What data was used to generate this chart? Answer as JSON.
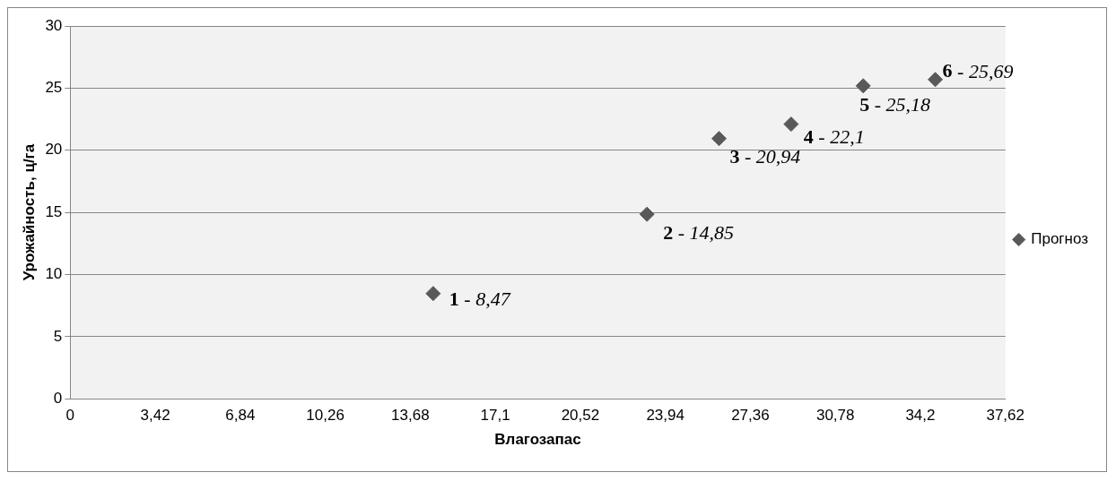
{
  "chart_data": {
    "type": "scatter",
    "xlabel": "Влагозапас",
    "ylabel": "Урожайность, ц/га",
    "x": [
      14.6,
      23.2,
      26.1,
      29.0,
      31.9,
      34.8
    ],
    "series": [
      {
        "name": "Прогноз",
        "color": "#595959",
        "values": [
          8.47,
          14.85,
          20.94,
          22.1,
          25.18,
          25.69
        ]
      }
    ],
    "xlim": [
      0,
      37.62
    ],
    "xticks": [
      0,
      {
        "value": 3.42,
        "label": "3,42"
      },
      {
        "value": 6.84,
        "label": "6,84"
      },
      {
        "value": 10.26,
        "label": "10,26"
      },
      {
        "value": 13.68,
        "label": "13,68"
      },
      {
        "value": 17.1,
        "label": "17,1"
      },
      {
        "value": 20.52,
        "label": "20,52"
      },
      {
        "value": 23.94,
        "label": "23,94"
      },
      {
        "value": 27.36,
        "label": "27,36"
      },
      {
        "value": 30.78,
        "label": "30,78"
      },
      {
        "value": 34.2,
        "label": "34,2"
      },
      {
        "value": 37.62,
        "label": "37,62"
      }
    ],
    "ylim": [
      0,
      30
    ],
    "yticks": [
      0,
      5,
      10,
      15,
      20,
      25,
      30
    ],
    "annotations": [
      {
        "text": "1 - 8,47",
        "x": 14.6,
        "y": 8.47
      },
      {
        "text": "2 - 14,85",
        "x": 23.2,
        "y": 14.85
      },
      {
        "text": "3 - 20,94",
        "x": 26.1,
        "y": 20.94
      },
      {
        "text": "4 - 22,1",
        "x": 29.0,
        "y": 22.1
      },
      {
        "text": "5 - 25,18",
        "x": 31.9,
        "y": 25.18
      },
      {
        "text": "6 - 25,69",
        "x": 34.8,
        "y": 25.69
      }
    ],
    "grid": "y",
    "legend": "right",
    "marker": "diamond"
  }
}
